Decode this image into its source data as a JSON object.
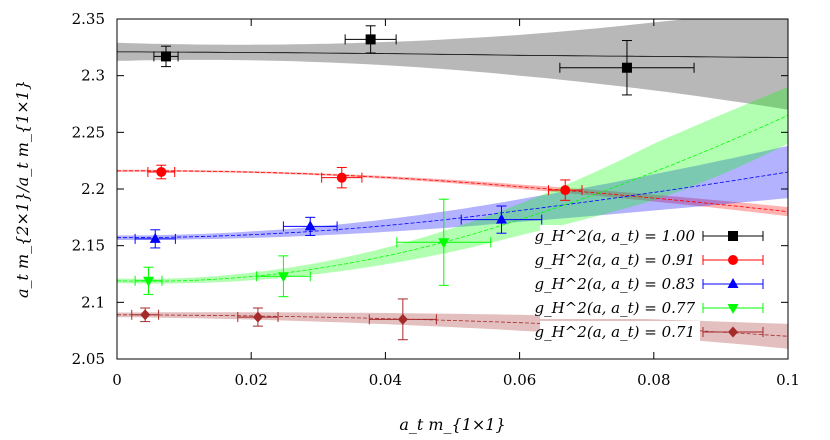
{
  "chart_data": {
    "type": "scatter",
    "title": "",
    "xlabel": "a_t m_{1×1}",
    "ylabel": "a_t m_{2×1}/a_t m_{1×1}",
    "xlim": [
      0,
      0.1
    ],
    "ylim": [
      2.05,
      2.35
    ],
    "x_ticks": [
      "0",
      "0.02",
      "0.04",
      "0.06",
      "0.08",
      "0.1"
    ],
    "y_ticks": [
      "2.05",
      "2.1",
      "2.15",
      "2.2",
      "2.25",
      "2.3",
      "2.35"
    ],
    "grid": false,
    "legend_position": "bottom-right",
    "series": [
      {
        "name": "g_H^2(a, a_t) = 1.00",
        "color": "#000000",
        "marker": "square",
        "points": [
          {
            "x": 0.0073,
            "y": 2.317,
            "xerr": 0.0018,
            "yerr": 0.009
          },
          {
            "x": 0.0378,
            "y": 2.332,
            "xerr": 0.0038,
            "yerr": 0.012
          },
          {
            "x": 0.076,
            "y": 2.307,
            "xerr": 0.01,
            "yerr": 0.024
          }
        ],
        "fit": {
          "x": [
            0,
            0.03,
            0.06,
            0.08,
            0.1
          ],
          "y": [
            2.321,
            2.32,
            2.318,
            2.317,
            2.316
          ],
          "band_upper": [
            2.329,
            2.328,
            2.336,
            2.347,
            2.36
          ],
          "band_lower": [
            2.313,
            2.312,
            2.3,
            2.287,
            2.27
          ]
        }
      },
      {
        "name": "g_H^2(a, a_t) = 0.91",
        "color": "#ff0000",
        "marker": "circle",
        "points": [
          {
            "x": 0.0066,
            "y": 2.215,
            "xerr": 0.002,
            "yerr": 0.006
          },
          {
            "x": 0.0335,
            "y": 2.21,
            "xerr": 0.003,
            "yerr": 0.009
          },
          {
            "x": 0.0668,
            "y": 2.199,
            "xerr": 0.0025,
            "yerr": 0.009
          }
        ],
        "fit": {
          "x": [
            0,
            0.03,
            0.06,
            0.08,
            0.1
          ],
          "y": [
            2.216,
            2.213,
            2.202,
            2.192,
            2.18
          ],
          "band_upper": [
            2.217,
            2.214,
            2.204,
            2.195,
            2.184
          ],
          "band_lower": [
            2.215,
            2.212,
            2.2,
            2.189,
            2.176
          ]
        }
      },
      {
        "name": "g_H^2(a, a_t) = 0.83",
        "color": "#0000ff",
        "marker": "triangle-up",
        "points": [
          {
            "x": 0.0057,
            "y": 2.156,
            "xerr": 0.003,
            "yerr": 0.008
          },
          {
            "x": 0.0288,
            "y": 2.167,
            "xerr": 0.004,
            "yerr": 0.008
          },
          {
            "x": 0.0573,
            "y": 2.173,
            "xerr": 0.006,
            "yerr": 0.012
          }
        ],
        "fit": {
          "x": [
            0,
            0.03,
            0.06,
            0.08,
            0.1
          ],
          "y": [
            2.157,
            2.163,
            2.181,
            2.197,
            2.215
          ],
          "band_upper": [
            2.159,
            2.167,
            2.191,
            2.213,
            2.238
          ],
          "band_lower": [
            2.155,
            2.159,
            2.171,
            2.181,
            2.192
          ]
        }
      },
      {
        "name": "g_H^2(a, a_t) = 0.77",
        "color": "#00ff00",
        "marker": "triangle-down",
        "points": [
          {
            "x": 0.0047,
            "y": 2.119,
            "xerr": 0.002,
            "yerr": 0.012
          },
          {
            "x": 0.0248,
            "y": 2.123,
            "xerr": 0.004,
            "yerr": 0.018
          },
          {
            "x": 0.0487,
            "y": 2.153,
            "xerr": 0.007,
            "yerr": 0.038
          }
        ],
        "fit": {
          "x": [
            0,
            0.03,
            0.06,
            0.08,
            0.1
          ],
          "y": [
            2.119,
            2.13,
            2.173,
            2.215,
            2.265
          ],
          "band_upper": [
            2.121,
            2.135,
            2.187,
            2.24,
            2.29
          ],
          "band_lower": [
            2.117,
            2.125,
            2.159,
            2.19,
            2.24
          ]
        }
      },
      {
        "name": "g_H^2(a, a_t) = 0.71",
        "color": "#a52a2a",
        "marker": "diamond",
        "points": [
          {
            "x": 0.0042,
            "y": 2.089,
            "xerr": 0.002,
            "yerr": 0.006
          },
          {
            "x": 0.021,
            "y": 2.087,
            "xerr": 0.003,
            "yerr": 0.008
          },
          {
            "x": 0.0426,
            "y": 2.085,
            "xerr": 0.005,
            "yerr": 0.018
          }
        ],
        "fit": {
          "x": [
            0,
            0.03,
            0.06,
            0.08,
            0.1
          ],
          "y": [
            2.089,
            2.087,
            2.082,
            2.077,
            2.07
          ],
          "band_upper": [
            2.091,
            2.091,
            2.089,
            2.085,
            2.081
          ],
          "band_lower": [
            2.087,
            2.083,
            2.075,
            2.069,
            2.059
          ]
        }
      }
    ]
  }
}
